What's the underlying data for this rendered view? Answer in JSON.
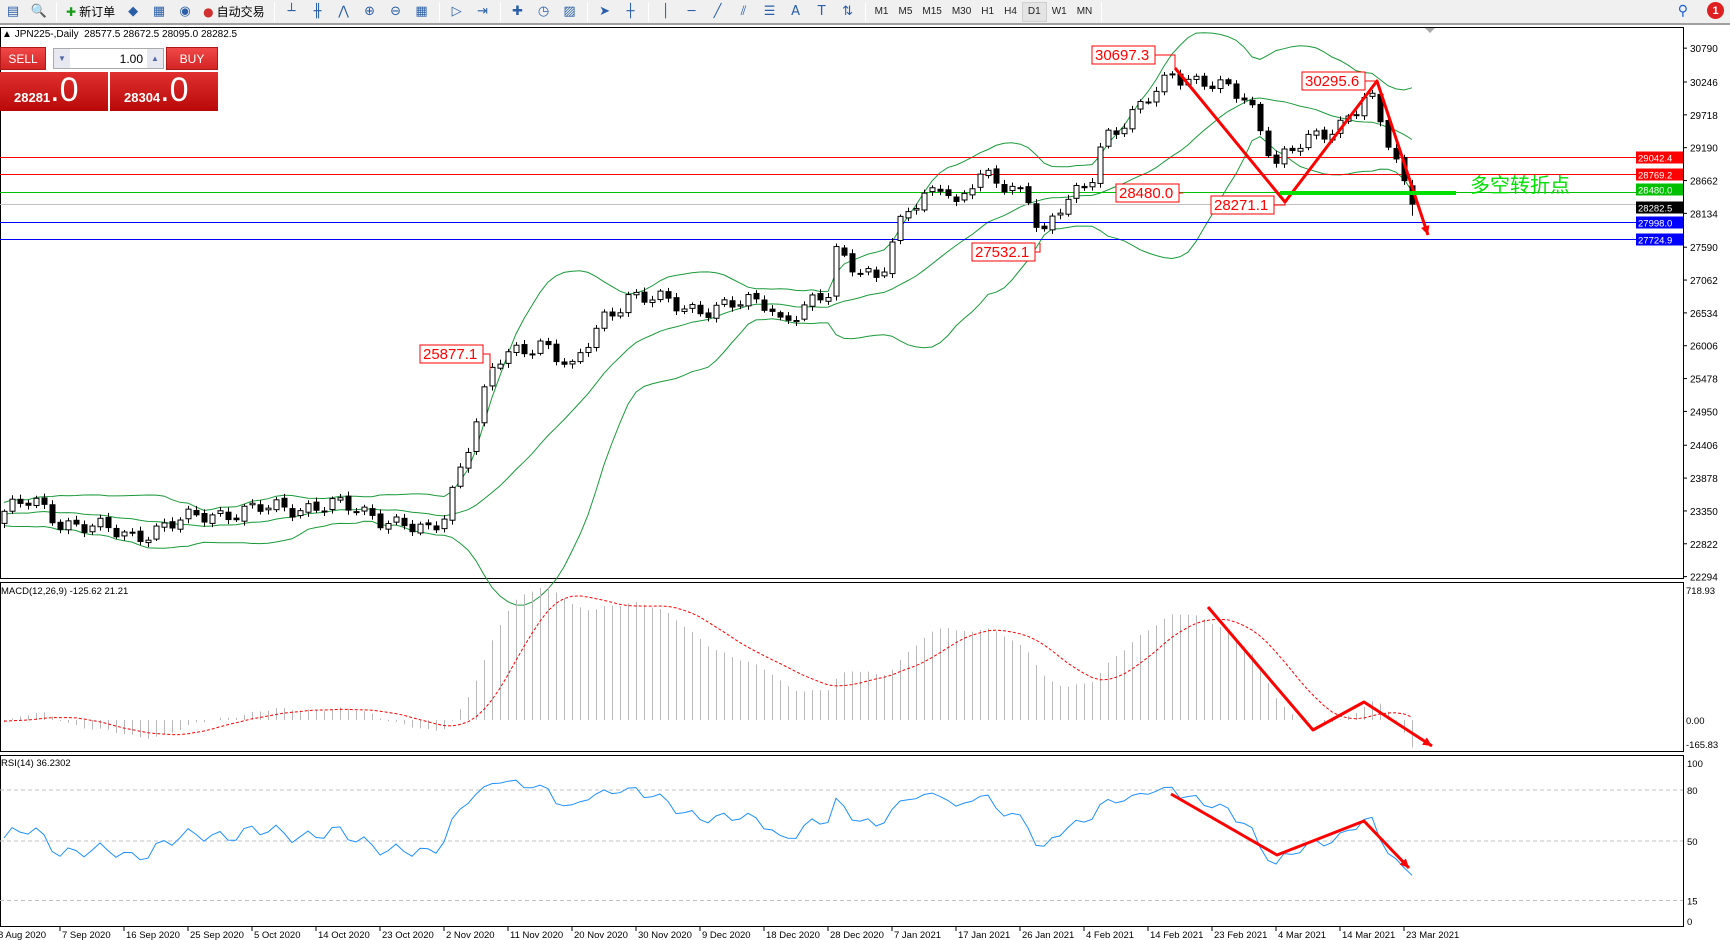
{
  "toolbar": {
    "icons_left": [
      "chart-window-icon",
      "zoom-chart-icon"
    ],
    "new_order_label": "新订单",
    "icons_mid": [
      "market-watch-icon",
      "navigator-icon",
      "signal-icon"
    ],
    "auto_trade_label": "自动交易",
    "chart_icons": [
      "bar-chart-icon",
      "candlestick-icon",
      "line-chart-icon",
      "zoom-in-icon",
      "zoom-out-icon",
      "tile-windows-icon",
      "autoscroll-icon",
      "chart-shift-icon",
      "indicators-icon",
      "periods-icon",
      "templates-icon",
      "cursor-icon",
      "crosshair-icon",
      "vertical-line-icon",
      "horizontal-line-icon",
      "trendline-icon",
      "equidistant-channel-icon",
      "fibonacci-icon",
      "text-icon",
      "text-label-icon",
      "arrows-icon"
    ],
    "timeframes": [
      "M1",
      "M5",
      "M15",
      "M30",
      "H1",
      "H4",
      "D1",
      "W1",
      "MN"
    ],
    "selected_timeframe": "D1",
    "notification_count": "1"
  },
  "chart_header": {
    "symbol": "JPN225-,Daily",
    "ohlc": "28577.5 28672.5 28095.0 28282.5"
  },
  "trade_panel": {
    "sell_label": "SELL",
    "buy_label": "BUY",
    "lot": "1.00",
    "sell_price_main": "28281",
    "sell_price_frac": ".0",
    "buy_price_main": "28304",
    "buy_price_frac": ".0"
  },
  "chart_data": {
    "type": "candlestick",
    "symbol": "JPN225-",
    "timeframe": "Daily",
    "last_bar": {
      "open": 28577.5,
      "high": 28672.5,
      "low": 28095.0,
      "close": 28282.5
    },
    "price_ticks": [
      30790.0,
      30246.0,
      29718.0,
      29190.0,
      28662.0,
      28134.0,
      27590.0,
      27062.0,
      26534.0,
      26006.0,
      25478.0,
      24950.0,
      24406.0,
      23878.0,
      23350.0,
      22822.0,
      22294.0
    ],
    "date_labels": [
      "8 Aug 2020",
      "7 Sep 2020",
      "16 Sep 2020",
      "25 Sep 2020",
      "5 Oct 2020",
      "14 Oct 2020",
      "23 Oct 2020",
      "2 Nov 2020",
      "11 Nov 2020",
      "20 Nov 2020",
      "30 Nov 2020",
      "9 Dec 2020",
      "18 Dec 2020",
      "28 Dec 2020",
      "7 Jan 2021",
      "17 Jan 2021",
      "26 Jan 2021",
      "4 Feb 2021",
      "14 Feb 2021",
      "23 Feb 2021",
      "4 Mar 2021",
      "14 Mar 2021",
      "23 Mar 2021"
    ],
    "close_path": [
      [
        "2020-06-20",
        23300
      ],
      [
        "2020-08-08",
        23300
      ],
      [
        "2020-08-25",
        23500
      ],
      [
        "2020-09-17",
        22950
      ],
      [
        "2020-09-28",
        23300
      ],
      [
        "2020-10-16",
        23450
      ],
      [
        "2020-10-25",
        23200
      ],
      [
        "2020-10-31",
        22950
      ],
      [
        "2020-11-02",
        23300
      ],
      [
        "2020-11-09",
        25700
      ],
      [
        "2020-11-16",
        26100
      ],
      [
        "2020-11-20",
        25600
      ],
      [
        "2020-11-25",
        26450
      ],
      [
        "2020-11-29",
        26850
      ],
      [
        "2020-12-07",
        26600
      ],
      [
        "2020-12-19",
        26700
      ],
      [
        "2020-12-20",
        26400
      ],
      [
        "2020-12-28",
        26800
      ],
      [
        "2020-12-29",
        27500
      ],
      [
        "2021-01-05",
        27100
      ],
      [
        "2021-01-09",
        28100
      ],
      [
        "2021-01-15",
        28700
      ],
      [
        "2021-01-17",
        28250
      ],
      [
        "2021-01-20",
        28700
      ],
      [
        "2021-01-27",
        28500
      ],
      [
        "2021-01-29",
        27700
      ],
      [
        "2021-01-31",
        28100
      ],
      [
        "2021-02-05",
        28700
      ],
      [
        "2021-02-07",
        29400
      ],
      [
        "2021-02-11",
        29600
      ],
      [
        "2021-02-16",
        30200
      ],
      [
        "2021-02-17",
        30450
      ],
      [
        "2021-02-21",
        30250
      ],
      [
        "2021-02-25",
        30100
      ],
      [
        "2021-02-28",
        30000
      ],
      [
        "2021-03-02",
        29450
      ],
      [
        "2021-03-04",
        28950
      ],
      [
        "2021-03-06",
        29100
      ],
      [
        "2021-03-11",
        29400
      ],
      [
        "2021-03-14",
        29600
      ],
      [
        "2021-03-18",
        30050
      ],
      [
        "2021-03-20",
        29450
      ],
      [
        "2021-03-22",
        28900
      ],
      [
        "2021-03-24",
        28282.5
      ]
    ],
    "indicators": {
      "bollinger_color": "#1a9a3a",
      "macd_label": "MACD(12,26,9) -125.62 21.21",
      "macd_ticks": [
        "718.93",
        "0.00",
        "-165.83"
      ],
      "rsi_label": "RSI(14) 36.2302",
      "rsi_levels": [
        "100",
        "80",
        "50",
        "15",
        "0"
      ]
    },
    "horizontal_lines": [
      {
        "value": "29042.4",
        "color": "#ff0000"
      },
      {
        "value": "28769.2",
        "color": "#ff0000"
      },
      {
        "value": "28480.0",
        "color": "#00c000"
      },
      {
        "value": "28282.5",
        "color": "#000000",
        "line": "#c0c0c0"
      },
      {
        "value": "27998.0",
        "color": "#0000ff"
      },
      {
        "value": "27724.9",
        "color": "#0000ff"
      }
    ],
    "price_labels": [
      "30697.3",
      "30295.6",
      "28480.0",
      "28271.1",
      "27532.1",
      "25877.1"
    ],
    "annotation_text": "多空转折点",
    "annotation_color": "#00e000",
    "arrow_color": "#ff0000"
  }
}
